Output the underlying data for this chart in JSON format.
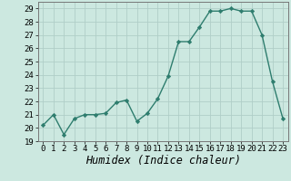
{
  "x": [
    0,
    1,
    2,
    3,
    4,
    5,
    6,
    7,
    8,
    9,
    10,
    11,
    12,
    13,
    14,
    15,
    16,
    17,
    18,
    19,
    20,
    21,
    22,
    23
  ],
  "y": [
    20.2,
    21.0,
    19.5,
    20.7,
    21.0,
    21.0,
    21.1,
    21.9,
    22.1,
    20.5,
    21.1,
    22.2,
    23.9,
    26.5,
    26.5,
    27.6,
    28.8,
    28.8,
    29.0,
    28.8,
    28.8,
    27.0,
    23.5,
    20.7
  ],
  "line_color": "#2e7d6e",
  "marker": "D",
  "marker_size": 2.2,
  "line_width": 1.0,
  "bg_color": "#cce8e0",
  "grid_color": "#b0cec8",
  "xlabel": "Humidex (Indice chaleur)",
  "xlabel_style": "italic",
  "ylim": [
    19,
    29.5
  ],
  "xlim": [
    -0.5,
    23.5
  ],
  "yticks": [
    19,
    20,
    21,
    22,
    23,
    24,
    25,
    26,
    27,
    28,
    29
  ],
  "xticks": [
    0,
    1,
    2,
    3,
    4,
    5,
    6,
    7,
    8,
    9,
    10,
    11,
    12,
    13,
    14,
    15,
    16,
    17,
    18,
    19,
    20,
    21,
    22,
    23
  ],
  "tick_fontsize": 6.5,
  "xlabel_fontsize": 8.5
}
